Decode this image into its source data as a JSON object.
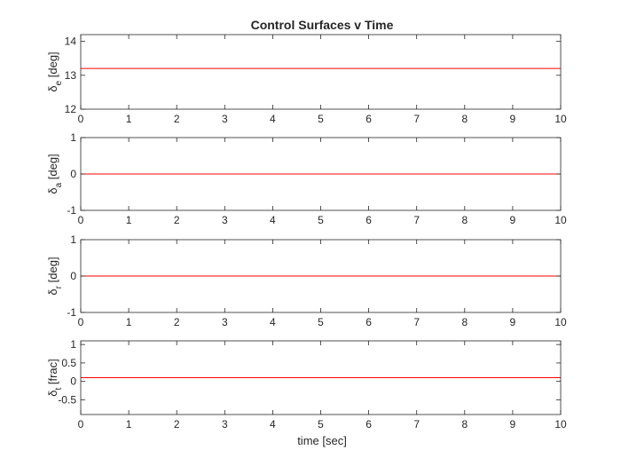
{
  "figure": {
    "title": "Control Surfaces v Time",
    "xlabel": "time [sec]"
  },
  "chart_data": [
    {
      "type": "line",
      "ylabel_symbol": "δ",
      "ylabel_sub": "e",
      "ylabel_unit": "[deg]",
      "xlim": [
        0,
        10
      ],
      "ylim": [
        12,
        14.2
      ],
      "xticks": [
        0,
        1,
        2,
        3,
        4,
        5,
        6,
        7,
        8,
        9,
        10
      ],
      "yticks": [
        12,
        13,
        14
      ],
      "ytick_labels": [
        "12",
        "13",
        "14"
      ],
      "grid": false,
      "series": [
        {
          "color": "#ff0000",
          "x": [
            0,
            10
          ],
          "y": [
            13.2,
            13.2
          ]
        }
      ]
    },
    {
      "type": "line",
      "ylabel_symbol": "δ",
      "ylabel_sub": "a",
      "ylabel_unit": "[deg]",
      "xlim": [
        0,
        10
      ],
      "ylim": [
        -1,
        1
      ],
      "xticks": [
        0,
        1,
        2,
        3,
        4,
        5,
        6,
        7,
        8,
        9,
        10
      ],
      "yticks": [
        -1,
        0,
        1
      ],
      "ytick_labels": [
        "-1",
        "0",
        "1"
      ],
      "grid": false,
      "series": [
        {
          "color": "#ff0000",
          "x": [
            0,
            10
          ],
          "y": [
            0,
            0
          ]
        }
      ]
    },
    {
      "type": "line",
      "ylabel_symbol": "δ",
      "ylabel_sub": "r",
      "ylabel_unit": "[deg]",
      "xlim": [
        0,
        10
      ],
      "ylim": [
        -1,
        1
      ],
      "xticks": [
        0,
        1,
        2,
        3,
        4,
        5,
        6,
        7,
        8,
        9,
        10
      ],
      "yticks": [
        -1,
        0,
        1
      ],
      "ytick_labels": [
        "-1",
        "0",
        "1"
      ],
      "grid": false,
      "series": [
        {
          "color": "#ff0000",
          "x": [
            0,
            10
          ],
          "y": [
            0,
            0
          ]
        }
      ]
    },
    {
      "type": "line",
      "ylabel_symbol": "δ",
      "ylabel_sub": "t",
      "ylabel_unit": "[frac]",
      "xlim": [
        0,
        10
      ],
      "ylim": [
        -0.9,
        1.1
      ],
      "xticks": [
        0,
        1,
        2,
        3,
        4,
        5,
        6,
        7,
        8,
        9,
        10
      ],
      "yticks": [
        -0.5,
        0,
        0.5,
        1
      ],
      "ytick_labels": [
        "-0.5",
        "0",
        "0.5",
        "1"
      ],
      "grid": false,
      "series": [
        {
          "color": "#ff0000",
          "x": [
            0,
            10
          ],
          "y": [
            0.1,
            0.1
          ]
        }
      ]
    }
  ],
  "colors": {
    "axis": "#262626",
    "line": "#ff0000",
    "background": "#ffffff"
  }
}
